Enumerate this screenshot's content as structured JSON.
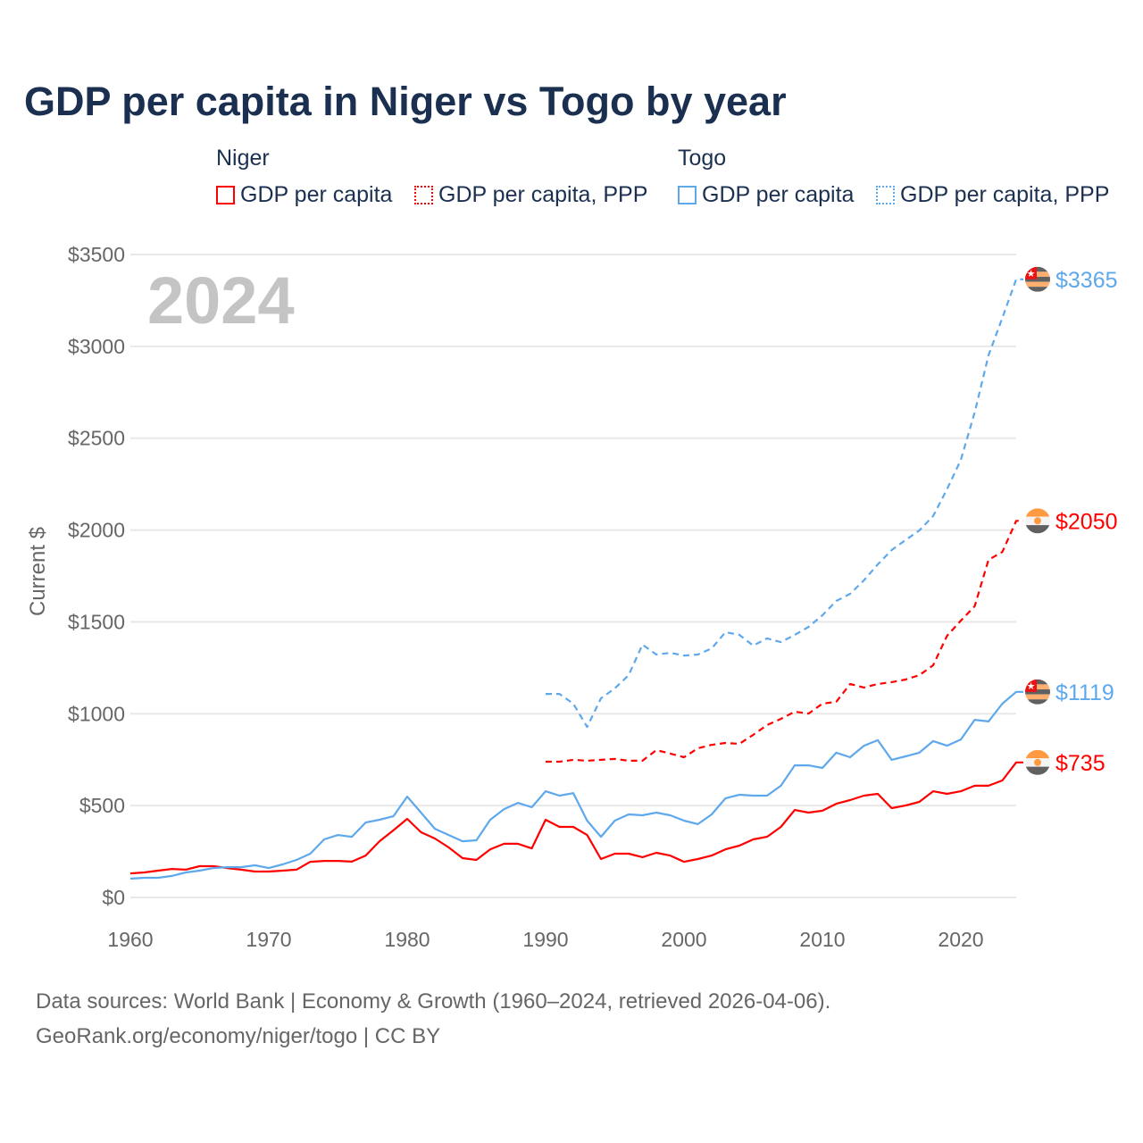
{
  "title": "GDP per capita in Niger vs Togo by year",
  "legend": {
    "groups": [
      {
        "name": "Niger",
        "items": [
          "GDP per capita",
          "GDP per capita, PPP"
        ],
        "color": "#ff0000"
      },
      {
        "name": "Togo",
        "items": [
          "GDP per capita",
          "GDP per capita, PPP"
        ],
        "color": "#5ea8ec"
      }
    ]
  },
  "footer": {
    "line1": "Data sources: World Bank | Economy & Growth (1960–2024, retrieved 2026-04-06).",
    "line2": "GeoRank.org/economy/niger/togo | CC BY"
  },
  "chart_data": {
    "type": "line",
    "title": "GDP per capita in Niger vs Togo by year",
    "watermark_year": "2024",
    "ylabel": "Current $",
    "xlabel": "",
    "xlim": [
      1960,
      2024
    ],
    "ylim": [
      0,
      3500
    ],
    "x_ticks": [
      1960,
      1970,
      1980,
      1990,
      2000,
      2010,
      2020
    ],
    "y_ticks": [
      0,
      500,
      1000,
      1500,
      2000,
      2500,
      3000,
      3500
    ],
    "y_tick_labels": [
      "$0",
      "$500",
      "$1000",
      "$1500",
      "$2000",
      "$2500",
      "$3000",
      "$3500"
    ],
    "grid": true,
    "series": [
      {
        "name": "Niger GDP per capita",
        "country": "Niger",
        "color": "#ff0000",
        "dashed": false,
        "start": 1960,
        "end_label": "$735",
        "values": [
          131,
          136,
          146,
          155,
          151,
          170,
          170,
          160,
          151,
          141,
          141,
          146,
          151,
          194,
          199,
          199,
          195,
          228,
          306,
          365,
          428,
          355,
          321,
          272,
          214,
          204,
          262,
          292,
          292,
          267,
          423,
          384,
          384,
          340,
          209,
          238,
          238,
          219,
          243,
          228,
          194,
          209,
          228,
          262,
          282,
          316,
          330,
          384,
          476,
          462,
          472,
          510,
          530,
          554,
          564,
          486,
          500,
          520,
          578,
          564,
          578,
          608,
          608,
          637,
          735
        ]
      },
      {
        "name": "Niger GDP per capita, PPP",
        "country": "Niger",
        "color": "#ff0000",
        "dashed": true,
        "start": 1990,
        "end_label": "$2050",
        "values": [
          739,
          739,
          749,
          744,
          749,
          754,
          744,
          744,
          802,
          783,
          763,
          812,
          831,
          841,
          836,
          885,
          938,
          972,
          1011,
          1001,
          1055,
          1065,
          1162,
          1143,
          1162,
          1172,
          1186,
          1210,
          1264,
          1424,
          1507,
          1585,
          1838,
          1881,
          2050
        ]
      },
      {
        "name": "Togo GDP per capita",
        "country": "Togo",
        "color": "#5ea8ec",
        "dashed": false,
        "start": 1960,
        "end_label": "$1119",
        "values": [
          102,
          107,
          107,
          117,
          136,
          146,
          160,
          165,
          165,
          175,
          160,
          180,
          204,
          238,
          316,
          340,
          330,
          408,
          423,
          442,
          549,
          462,
          374,
          340,
          306,
          311,
          423,
          481,
          515,
          491,
          578,
          554,
          568,
          418,
          330,
          418,
          452,
          447,
          462,
          447,
          418,
          399,
          452,
          540,
          559,
          554,
          554,
          608,
          719,
          719,
          705,
          788,
          763,
          826,
          856,
          749,
          768,
          788,
          851,
          826,
          860,
          967,
          958,
          1055,
          1119
        ]
      },
      {
        "name": "Togo GDP per capita, PPP",
        "country": "Togo",
        "color": "#5ea8ec",
        "dashed": true,
        "start": 1990,
        "end_label": "$3365",
        "values": [
          1108,
          1108,
          1055,
          928,
          1084,
          1138,
          1210,
          1376,
          1322,
          1332,
          1317,
          1322,
          1356,
          1444,
          1429,
          1371,
          1410,
          1390,
          1429,
          1473,
          1536,
          1614,
          1653,
          1726,
          1813,
          1891,
          1945,
          1998,
          2076,
          2222,
          2382,
          2640,
          2951,
          3155,
          3365
        ]
      }
    ]
  }
}
